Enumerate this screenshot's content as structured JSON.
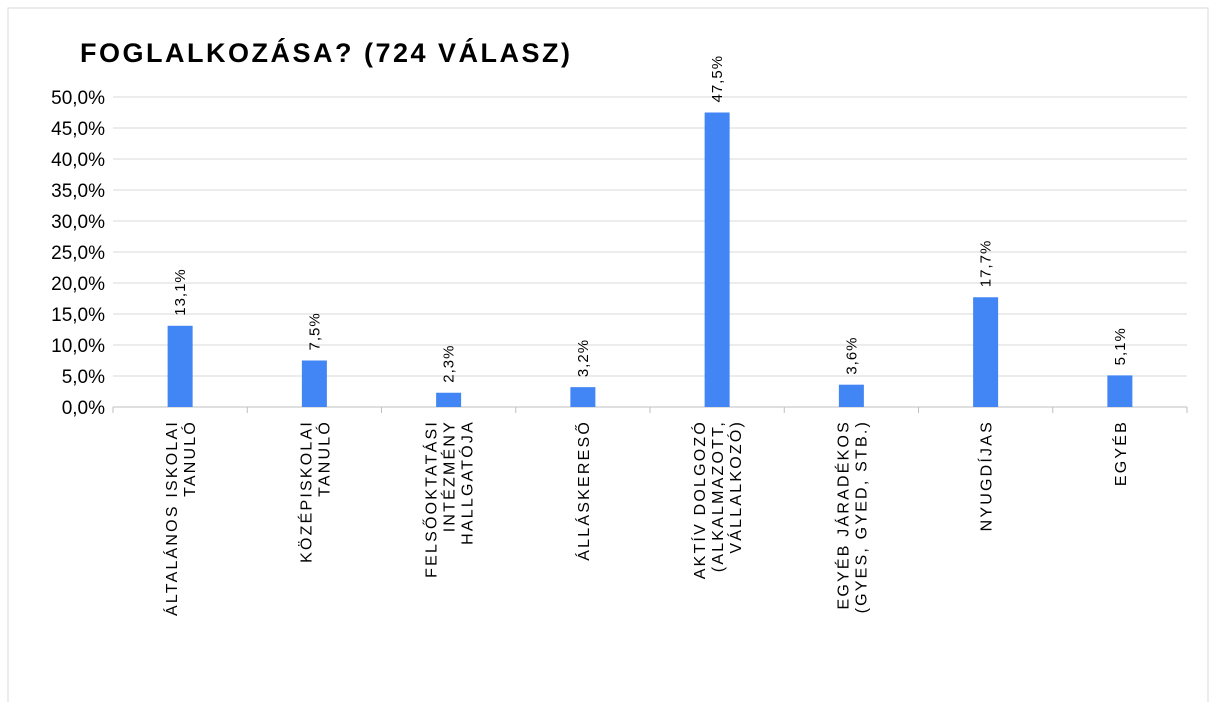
{
  "chart_data": {
    "type": "bar",
    "title": "FOGLALKOZÁSA? (724 VÁLASZ)",
    "categories": [
      "ÁLTALÁNOS ISKOLAI\nTANULÓ",
      "KÖZÉPISKOLAI\nTANULÓ",
      "FELSŐOKTATÁSI\nINTÉZMÉNY\nHALLGATÓJA",
      "ÁLLÁSKERESŐ",
      "AKTÍV DOLGOZÓ\n(ALKALMAZOTT,\nVÁLLALKOZÓ)",
      "EGYÉB JÁRADÉKOS\n(GYES, GYED, STB.)",
      "NYUGDÍJAS",
      "EGYÉB"
    ],
    "values": [
      13.1,
      7.5,
      2.3,
      3.2,
      47.5,
      3.6,
      17.7,
      5.1
    ],
    "value_labels": [
      "13,1%",
      "7,5%",
      "2,3%",
      "3,2%",
      "47,5%",
      "3,6%",
      "17,7%",
      "5,1%"
    ],
    "color": "#4285f4",
    "ylim": [
      0,
      50
    ],
    "yticks": [
      {
        "value": 0,
        "label": "0,0%"
      },
      {
        "value": 5,
        "label": "5,0%"
      },
      {
        "value": 10,
        "label": "10,0%"
      },
      {
        "value": 15,
        "label": "15,0%"
      },
      {
        "value": 20,
        "label": "20,0%"
      },
      {
        "value": 25,
        "label": "25,0%"
      },
      {
        "value": 30,
        "label": "30,0%"
      },
      {
        "value": 35,
        "label": "35,0%"
      },
      {
        "value": 40,
        "label": "40,0%"
      },
      {
        "value": 45,
        "label": "45,0%"
      },
      {
        "value": 50,
        "label": "50,0%"
      }
    ],
    "grid": true
  }
}
